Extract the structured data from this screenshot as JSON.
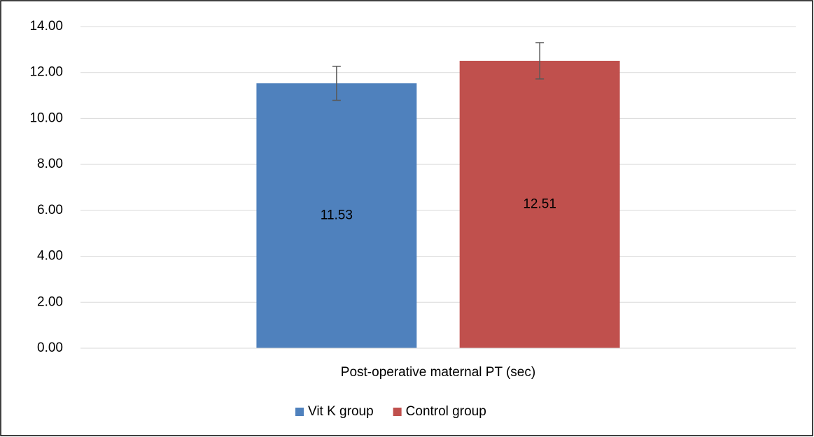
{
  "chart_data": {
    "type": "bar",
    "categories": [
      "Post-operative maternal PT (sec)"
    ],
    "series": [
      {
        "name": "Vit K group",
        "color": "#4f81bd",
        "values": [
          11.53
        ],
        "errors": [
          0.74
        ]
      },
      {
        "name": "Control group",
        "color": "#c0504d",
        "values": [
          12.51
        ],
        "errors": [
          0.79
        ]
      }
    ],
    "ylim": [
      0,
      14
    ],
    "yticks": [
      {
        "value": 0,
        "label": "0.00"
      },
      {
        "value": 2,
        "label": "2.00"
      },
      {
        "value": 4,
        "label": "4.00"
      },
      {
        "value": 6,
        "label": "6.00"
      },
      {
        "value": 8,
        "label": "8.00"
      },
      {
        "value": 10,
        "label": "10.00"
      },
      {
        "value": 12,
        "label": "12.00"
      },
      {
        "value": 14,
        "label": "14.00"
      }
    ],
    "grid": true,
    "legend": "bottom",
    "data_labels": true
  }
}
